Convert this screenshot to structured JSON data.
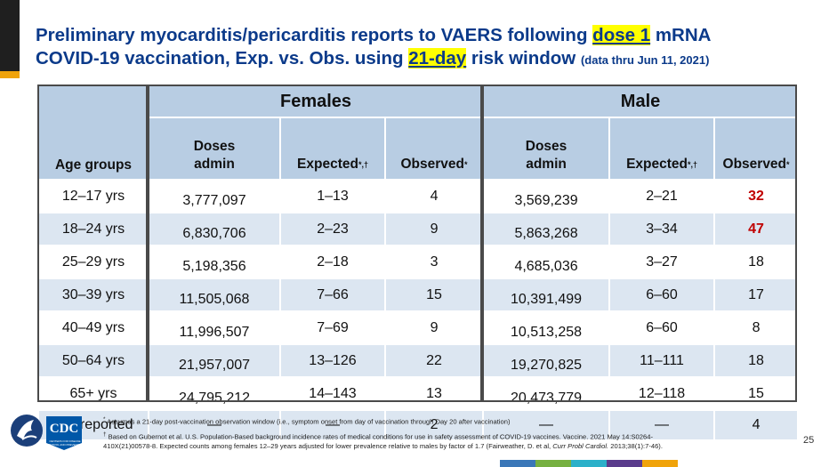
{
  "slide": {
    "title_part1": "Preliminary myocarditis/pericarditis reports to VAERS following ",
    "title_highlight1": "dose 1",
    "title_part2": " mRNA",
    "title_line2_part1": "COVID-19 vaccination, Exp. vs. Obs. using ",
    "title_highlight2": "21-day",
    "title_line2_part2": " risk window",
    "title_note": "(data thru Jun 11, 2021)",
    "page_number": "25"
  },
  "table": {
    "age_header": "Age groups",
    "groups": [
      {
        "label": "Females"
      },
      {
        "label": "Male"
      }
    ],
    "sub_headers": {
      "doses_line1": "Doses",
      "doses_line2": "admin",
      "expected": "Expected",
      "expected_mark": "*,†",
      "observed": "Observed",
      "observed_mark": "*"
    },
    "rows": [
      {
        "age": "12–17 yrs",
        "f_doses": "3,777,097",
        "f_exp": "1–13",
        "f_obs": "4",
        "m_doses": "3,569,239",
        "m_exp": "2–21",
        "m_obs": "32"
      },
      {
        "age": "18–24 yrs",
        "f_doses": "6,830,706",
        "f_exp": "2–23",
        "f_obs": "9",
        "m_doses": "5,863,268",
        "m_exp": "3–34",
        "m_obs": "47"
      },
      {
        "age": "25–29 yrs",
        "f_doses": "5,198,356",
        "f_exp": "2–18",
        "f_obs": "3",
        "m_doses": "4,685,036",
        "m_exp": "3–27",
        "m_obs": "18"
      },
      {
        "age": "30–39 yrs",
        "f_doses": "11,505,068",
        "f_exp": "7–66",
        "f_obs": "15",
        "m_doses": "10,391,499",
        "m_exp": "6–60",
        "m_obs": "17"
      },
      {
        "age": "40–49 yrs",
        "f_doses": "11,996,507",
        "f_exp": "7–69",
        "f_obs": "9",
        "m_doses": "10,513,258",
        "m_exp": "6–60",
        "m_obs": "8"
      },
      {
        "age": "50–64 yrs",
        "f_doses": "21,957,007",
        "f_exp": "13–126",
        "f_obs": "22",
        "m_doses": "19,270,825",
        "m_exp": "11–111",
        "m_obs": "18"
      },
      {
        "age": "65+ yrs",
        "f_doses": "24,795,212",
        "f_exp": "14–143",
        "f_obs": "13",
        "m_doses": "20,473,779",
        "m_exp": "12–118",
        "m_obs": "15"
      },
      {
        "age": "Not reported",
        "f_doses": "—",
        "f_exp": "—",
        "f_obs": "2",
        "m_doses": "—",
        "m_exp": "—",
        "m_obs": "4"
      }
    ]
  },
  "footnotes": {
    "note1_mark": "*",
    "note1": " Assumes a 21-day post-vaccination observation window (i.e., symptom onset from day of vaccination through Day 20 after vaccination)",
    "note2_mark": "†",
    "note2_a": " Based on Gubernot et al. U.S. Population-Based background incidence rates of medical conditions for use in safety assessment of COVID-19 vaccines. Vaccine. 2021 May 14:S0264-",
    "note2_b": "410X(21)00578-8. Expected counts among females 12–29 years adjusted for lower prevalence relative to males by factor of 1.7 (Fairweather, D. et al, ",
    "note2_journal": "Curr Probl Cardiol.",
    "note2_c": " 2013;38(1):7-46)."
  },
  "logo": {
    "text": "CDC",
    "caption_line1": "CENTERS FOR DISEASE",
    "caption_line2": "CONTROL AND PREVENTION"
  },
  "colors": {
    "title_blue": "#0b3a8a",
    "highlight": "#ffff00",
    "header_fill": "#b8cde3",
    "row_alt_fill": "#dce6f1",
    "emphasis_red": "#c00000",
    "cdc_blue": "#0057a8",
    "bottom_bar": [
      "#3a77b8",
      "#76b041",
      "#2bb0c9",
      "#5a3c8c",
      "#f0a30a"
    ]
  }
}
